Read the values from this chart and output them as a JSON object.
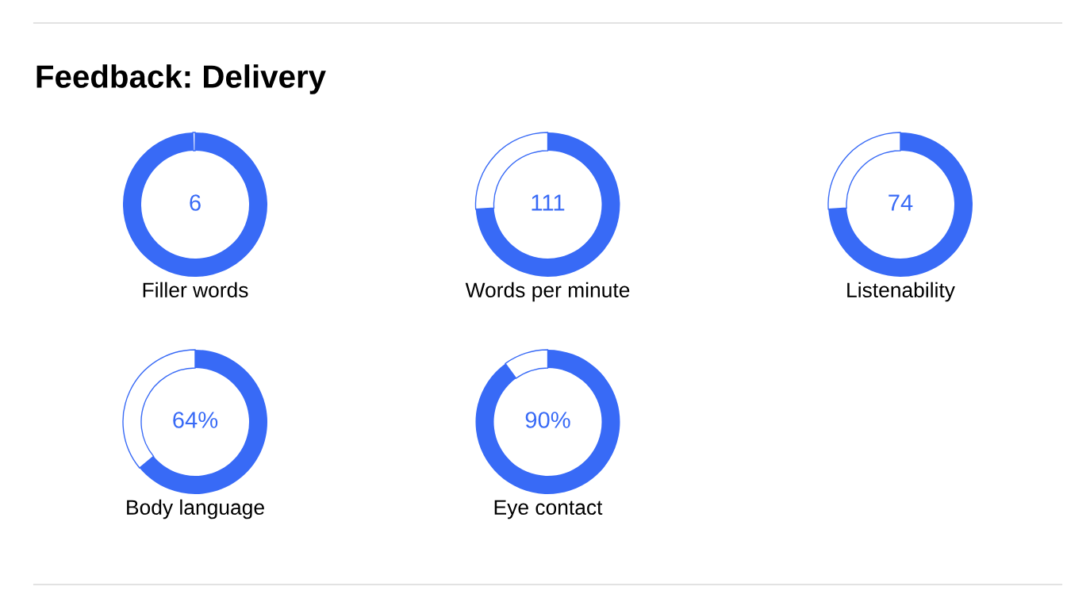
{
  "chart_data": [
    {
      "type": "other",
      "title": "Feedback: Delivery"
    },
    {
      "type": "donut",
      "title": "Filler words",
      "categories": [
        null,
        null
      ],
      "values": [
        99.5,
        0.5
      ],
      "colors": [
        "#386af6",
        "#ffffff"
      ],
      "annotations": [
        "6"
      ]
    },
    {
      "type": "donut",
      "title": "Words per minute",
      "categories": [
        null,
        null
      ],
      "values": [
        74,
        26
      ],
      "colors": [
        "#386af6",
        "#ffffff"
      ],
      "annotations": [
        "111"
      ]
    },
    {
      "type": "donut",
      "title": "Listenability",
      "categories": [
        null,
        null
      ],
      "values": [
        74,
        26
      ],
      "colors": [
        "#386af6",
        "#ffffff"
      ],
      "annotations": [
        "74"
      ]
    },
    {
      "type": "donut",
      "title": "Body language",
      "categories": [
        null,
        null
      ],
      "values": [
        64,
        36
      ],
      "colors": [
        "#386af6",
        "#ffffff"
      ],
      "annotations": [
        "64%"
      ]
    },
    {
      "type": "donut",
      "title": "Eye contact",
      "categories": [
        null,
        null
      ],
      "values": [
        90,
        10
      ],
      "colors": [
        "#386af6",
        "#ffffff"
      ],
      "annotations": [
        "90%"
      ]
    }
  ]
}
